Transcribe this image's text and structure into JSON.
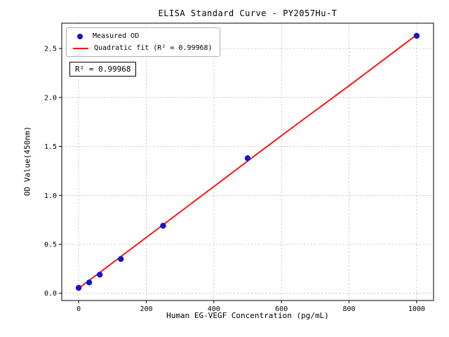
{
  "chart_data": {
    "type": "scatter",
    "title": "ELISA Standard Curve - PY2057Hu-T",
    "xlabel": "Human EG-VEGF Concentration (pg/mL)",
    "ylabel": "OD Value(450nm)",
    "xlim": [
      -50,
      1050
    ],
    "ylim": [
      -0.074,
      2.759
    ],
    "xticks": [
      0,
      200,
      400,
      600,
      800,
      1000
    ],
    "xtick_labels": [
      "0",
      "200",
      "400",
      "600",
      "800",
      "1000"
    ],
    "yticks": [
      0.0,
      0.5,
      1.0,
      1.5,
      2.0,
      2.5
    ],
    "ytick_labels": [
      "0.0",
      "0.5",
      "1.0",
      "1.5",
      "2.0",
      "2.5"
    ],
    "grid": true,
    "grid_style": "dashed",
    "grid_color": "#c0c0c0",
    "frame_color": "#000000",
    "background_color": "#ffffff",
    "legend_position": "upper left",
    "annotation": "R² = 0.99968",
    "series": [
      {
        "name": "Measured OD",
        "type": "scatter",
        "color": "#1515cd",
        "x": [
          0,
          31.25,
          62.5,
          125,
          250,
          500,
          1000
        ],
        "y": [
          0.055,
          0.11,
          0.19,
          0.35,
          0.69,
          1.38,
          2.63
        ]
      },
      {
        "name": "Quadratic fit (R² = 0.99968)",
        "type": "line",
        "color": "#ff0000",
        "x": [
          0,
          200,
          400,
          600,
          800,
          1000
        ],
        "y": [
          0.05,
          0.57,
          1.09,
          1.61,
          2.12,
          2.64
        ]
      }
    ]
  }
}
